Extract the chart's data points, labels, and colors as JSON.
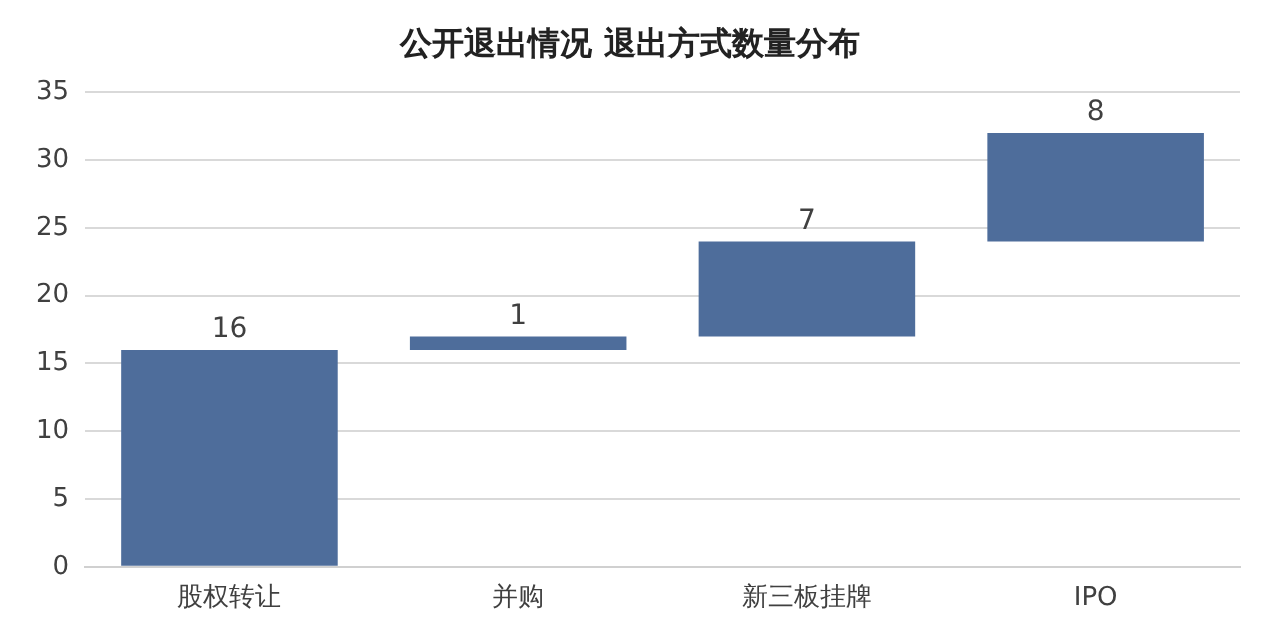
{
  "chart_data": {
    "type": "bar",
    "title": "公开退出情况 退出方式数量分布",
    "categories": [
      "股权转让",
      "并购",
      "新三板挂牌",
      "IPO"
    ],
    "values": [
      16,
      1,
      7,
      8
    ],
    "base": [
      0,
      16,
      17,
      24
    ],
    "color": "#4e6d9b",
    "ylim": [
      0,
      35
    ],
    "yticks": [
      0,
      5,
      10,
      15,
      20,
      25,
      30,
      35
    ],
    "grid": "y",
    "legend": false,
    "data_labels": true
  }
}
